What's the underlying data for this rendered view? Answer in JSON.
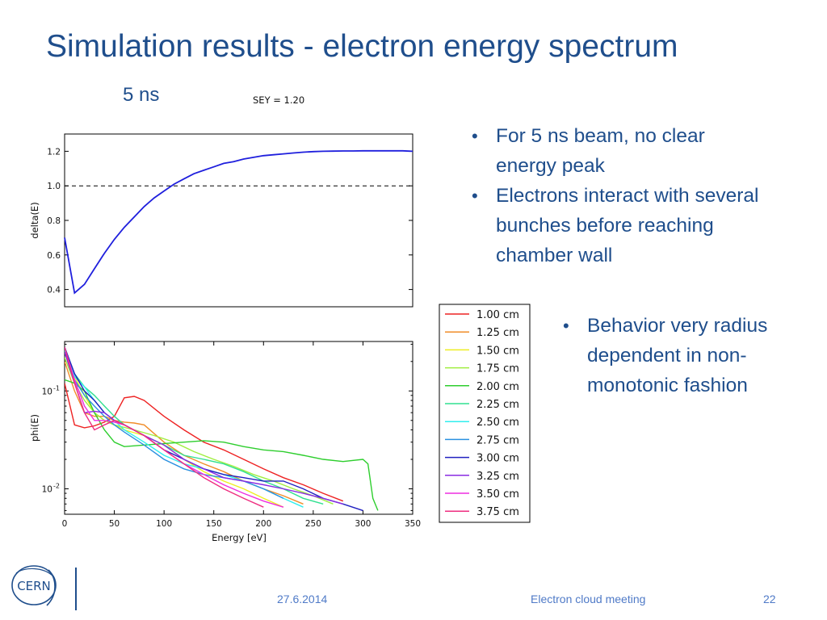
{
  "slide": {
    "title": "Simulation results - electron energy spectrum",
    "subtitle": "5 ns"
  },
  "bullets_top": [
    "For 5 ns beam, no clear energy peak",
    "Electrons interact with several bunches before reaching chamber wall"
  ],
  "bullets_bottom": [
    "Behavior very radius dependent in non-monotonic fashion"
  ],
  "footer": {
    "date": "27.6.2014",
    "meeting": "Electron cloud meeting",
    "page": "22"
  },
  "logo": {
    "text": "CERN"
  },
  "chart_data": [
    {
      "type": "line",
      "title": "SEY = 1.20",
      "xlabel": "",
      "ylabel": "delta(E)",
      "xlim": [
        0,
        350
      ],
      "ylim": [
        0.3,
        1.3
      ],
      "yticks": [
        "0.4",
        "0.6",
        "0.8",
        "1.0",
        "1.2"
      ],
      "reference_line": {
        "y": 1.0,
        "style": "dashed"
      },
      "series": [
        {
          "color": "#1f1fdd",
          "x": [
            0,
            10,
            20,
            30,
            40,
            50,
            60,
            70,
            80,
            90,
            100,
            110,
            120,
            130,
            140,
            150,
            160,
            170,
            180,
            190,
            200,
            210,
            220,
            230,
            240,
            250,
            260,
            270,
            280,
            290,
            300,
            310,
            320,
            330,
            340,
            350
          ],
          "y": [
            0.7,
            0.38,
            0.43,
            0.52,
            0.61,
            0.69,
            0.76,
            0.82,
            0.88,
            0.93,
            0.97,
            1.01,
            1.04,
            1.07,
            1.09,
            1.11,
            1.13,
            1.14,
            1.155,
            1.165,
            1.175,
            1.18,
            1.185,
            1.19,
            1.195,
            1.198,
            1.2,
            1.201,
            1.202,
            1.202,
            1.203,
            1.203,
            1.203,
            1.203,
            1.203,
            1.2
          ]
        }
      ]
    },
    {
      "type": "line",
      "title": "",
      "xlabel": "Energy [eV]",
      "ylabel": "phi(E)",
      "xlim": [
        0,
        350
      ],
      "ylim": [
        0.0055,
        0.32
      ],
      "yscale": "log",
      "xticks": [
        "0",
        "50",
        "100",
        "150",
        "200",
        "250",
        "300",
        "350"
      ],
      "ytick_labels": [
        {
          "value": 0.1,
          "base": "10",
          "exp": "-1"
        },
        {
          "value": 0.01,
          "base": "10",
          "exp": "-2"
        }
      ],
      "legend": "outside-right",
      "series": [
        {
          "name": "1.00 cm",
          "color": "#ee2222",
          "x": [
            0,
            10,
            20,
            30,
            40,
            50,
            60,
            70,
            80,
            100,
            120,
            140,
            160,
            180,
            200,
            220,
            240,
            260,
            280
          ],
          "y": [
            0.12,
            0.045,
            0.042,
            0.044,
            0.048,
            0.055,
            0.085,
            0.088,
            0.08,
            0.055,
            0.04,
            0.03,
            0.025,
            0.02,
            0.016,
            0.013,
            0.011,
            0.009,
            0.0075
          ]
        },
        {
          "name": "1.25 cm",
          "color": "#f08c28",
          "x": [
            0,
            10,
            20,
            30,
            40,
            50,
            60,
            70,
            80,
            100,
            120,
            140,
            160,
            180,
            200,
            220,
            240
          ],
          "y": [
            0.2,
            0.1,
            0.06,
            0.055,
            0.055,
            0.05,
            0.048,
            0.047,
            0.045,
            0.03,
            0.022,
            0.018,
            0.015,
            0.012,
            0.01,
            0.0085,
            0.007
          ]
        },
        {
          "name": "1.50 cm",
          "color": "#eeee22",
          "x": [
            0,
            10,
            20,
            30,
            40,
            50,
            60,
            80,
            100,
            120,
            140,
            160,
            180,
            200,
            220
          ],
          "y": [
            0.25,
            0.14,
            0.09,
            0.06,
            0.05,
            0.045,
            0.04,
            0.035,
            0.028,
            0.02,
            0.015,
            0.012,
            0.01,
            0.008,
            0.0065
          ]
        },
        {
          "name": "1.75 cm",
          "color": "#a0ee40",
          "x": [
            0,
            10,
            20,
            30,
            40,
            50,
            70,
            90,
            110,
            130,
            150,
            170,
            190,
            210,
            230,
            250,
            270
          ],
          "y": [
            0.22,
            0.12,
            0.08,
            0.06,
            0.05,
            0.045,
            0.04,
            0.035,
            0.03,
            0.024,
            0.02,
            0.017,
            0.014,
            0.012,
            0.01,
            0.0085,
            0.007
          ]
        },
        {
          "name": "2.00 cm",
          "color": "#2ece2e",
          "x": [
            0,
            10,
            20,
            30,
            40,
            50,
            60,
            80,
            100,
            120,
            140,
            160,
            180,
            200,
            220,
            240,
            260,
            280,
            300,
            305,
            310,
            315
          ],
          "y": [
            0.13,
            0.12,
            0.1,
            0.06,
            0.04,
            0.03,
            0.027,
            0.028,
            0.029,
            0.03,
            0.031,
            0.03,
            0.027,
            0.025,
            0.024,
            0.022,
            0.02,
            0.019,
            0.02,
            0.018,
            0.008,
            0.006
          ]
        },
        {
          "name": "2.25 cm",
          "color": "#30e090",
          "x": [
            0,
            10,
            20,
            30,
            40,
            50,
            60,
            80,
            100,
            120,
            140,
            160,
            180,
            200,
            220,
            240,
            260
          ],
          "y": [
            0.28,
            0.15,
            0.11,
            0.09,
            0.07,
            0.055,
            0.045,
            0.035,
            0.028,
            0.022,
            0.02,
            0.018,
            0.015,
            0.012,
            0.01,
            0.008,
            0.007
          ]
        },
        {
          "name": "2.50 cm",
          "color": "#30eeee",
          "x": [
            0,
            10,
            20,
            30,
            40,
            50,
            60,
            80,
            100,
            120,
            140,
            160,
            180,
            200,
            220,
            240
          ],
          "y": [
            0.26,
            0.14,
            0.11,
            0.08,
            0.06,
            0.05,
            0.04,
            0.03,
            0.022,
            0.018,
            0.016,
            0.014,
            0.012,
            0.01,
            0.008,
            0.0065
          ]
        },
        {
          "name": "2.75 cm",
          "color": "#2a90e0",
          "x": [
            0,
            10,
            20,
            30,
            40,
            50,
            60,
            80,
            100,
            120,
            140,
            160,
            180,
            200,
            220
          ],
          "y": [
            0.25,
            0.13,
            0.09,
            0.07,
            0.055,
            0.045,
            0.038,
            0.028,
            0.02,
            0.016,
            0.014,
            0.013,
            0.012,
            0.01,
            0.008
          ]
        },
        {
          "name": "3.00 cm",
          "color": "#2020c0",
          "x": [
            0,
            10,
            20,
            30,
            40,
            50,
            60,
            80,
            100,
            120,
            140,
            160,
            180,
            200,
            220,
            240,
            260,
            280,
            300
          ],
          "y": [
            0.28,
            0.15,
            0.1,
            0.08,
            0.06,
            0.05,
            0.045,
            0.035,
            0.025,
            0.02,
            0.016,
            0.014,
            0.013,
            0.012,
            0.012,
            0.01,
            0.008,
            0.007,
            0.006
          ]
        },
        {
          "name": "3.25 cm",
          "color": "#8a2be2",
          "x": [
            0,
            10,
            20,
            30,
            40,
            50,
            60,
            80,
            100,
            120,
            140,
            160,
            180,
            200,
            220,
            240,
            260,
            280
          ],
          "y": [
            0.25,
            0.12,
            0.06,
            0.062,
            0.06,
            0.05,
            0.045,
            0.035,
            0.028,
            0.02,
            0.016,
            0.013,
            0.012,
            0.011,
            0.01,
            0.009,
            0.008,
            0.007
          ]
        },
        {
          "name": "3.50 cm",
          "color": "#ee2ee0",
          "x": [
            0,
            10,
            20,
            30,
            40,
            50,
            60,
            80,
            100,
            120,
            140,
            160,
            180,
            200,
            220
          ],
          "y": [
            0.28,
            0.13,
            0.07,
            0.05,
            0.05,
            0.048,
            0.045,
            0.035,
            0.025,
            0.018,
            0.014,
            0.011,
            0.009,
            0.0075,
            0.0065
          ]
        },
        {
          "name": "3.75 cm",
          "color": "#ee2e80",
          "x": [
            0,
            10,
            20,
            30,
            40,
            50,
            60,
            80,
            100,
            120,
            140,
            160,
            180,
            200
          ],
          "y": [
            0.28,
            0.12,
            0.06,
            0.04,
            0.045,
            0.05,
            0.045,
            0.035,
            0.025,
            0.018,
            0.013,
            0.01,
            0.008,
            0.0065
          ]
        }
      ]
    }
  ]
}
